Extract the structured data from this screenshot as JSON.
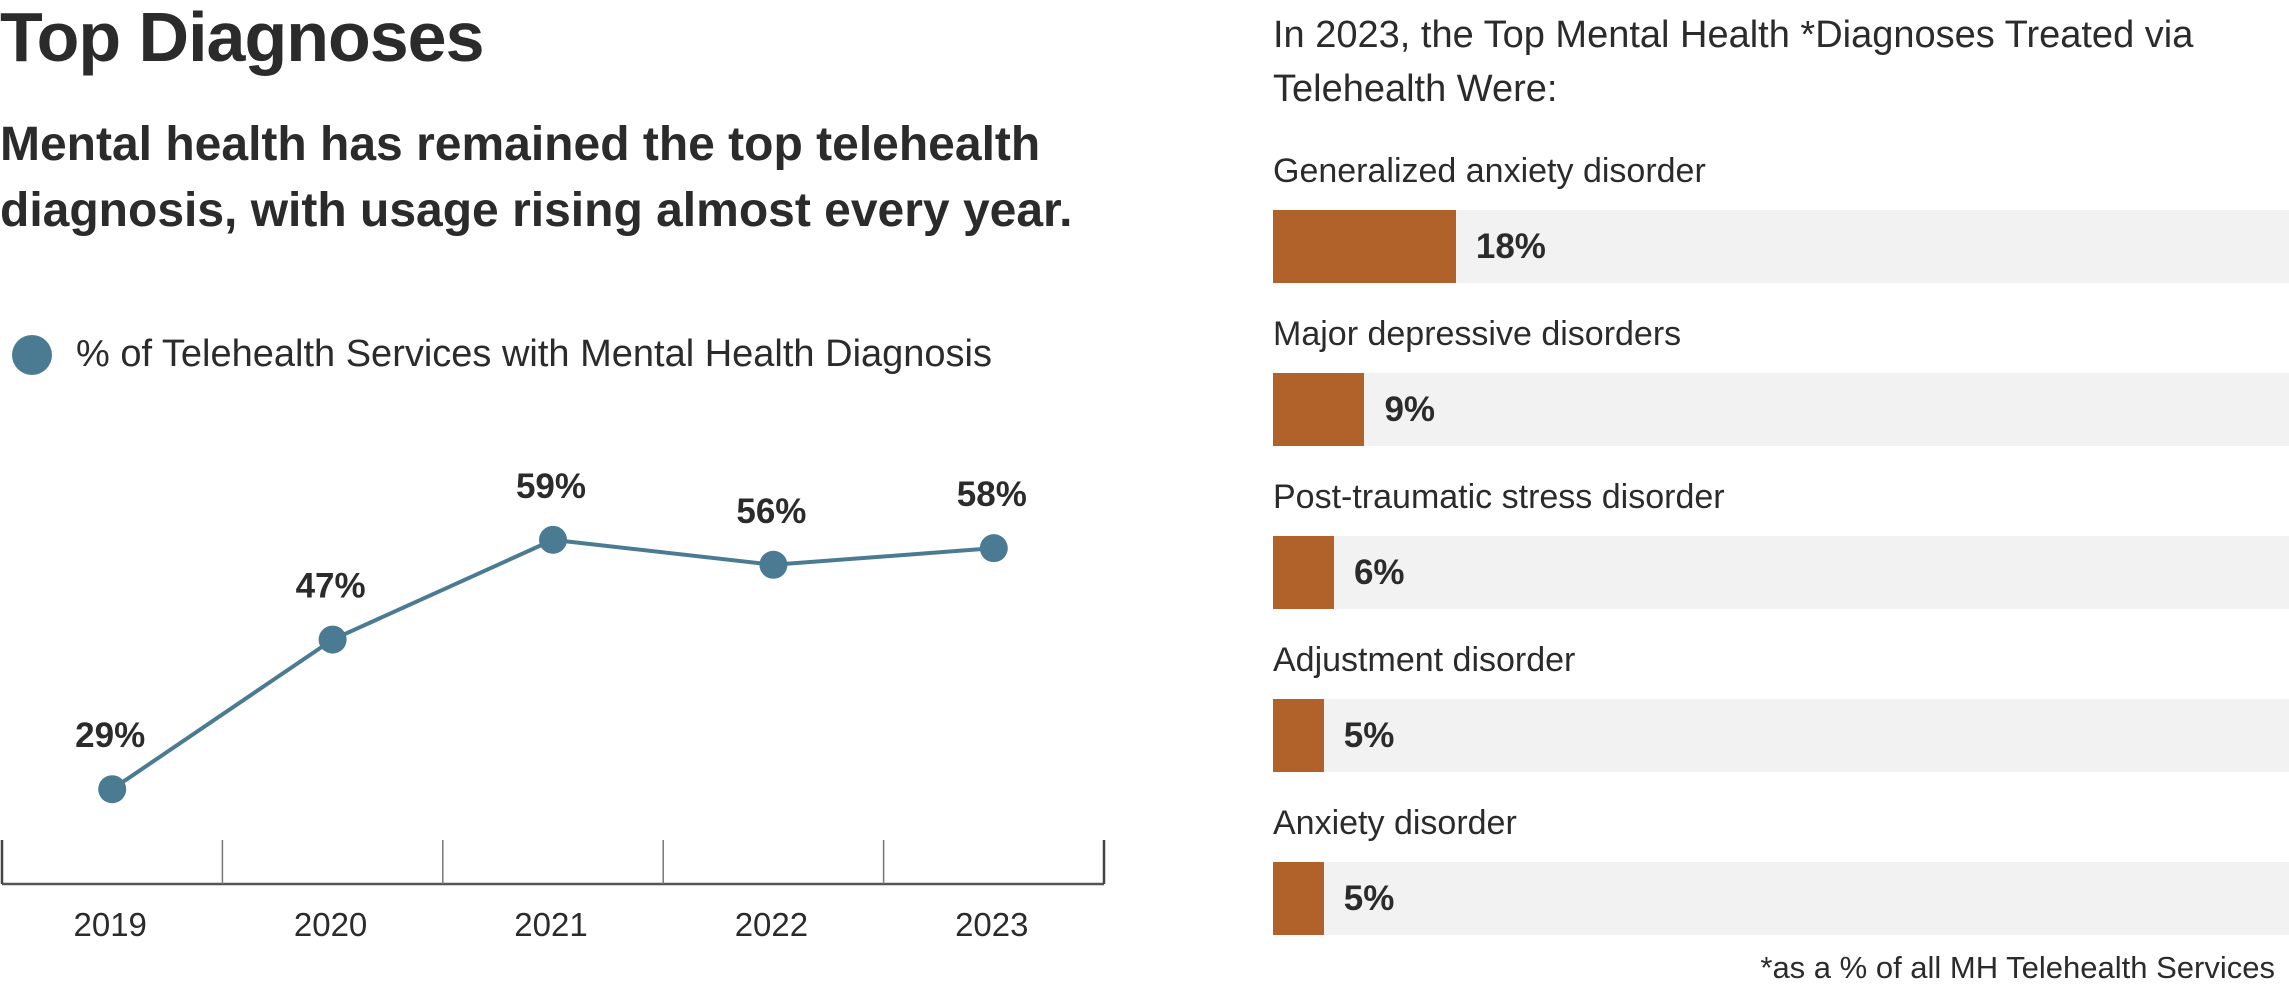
{
  "header": {
    "title": "Top Diagnoses",
    "subtitle": "Mental health has remained the top telehealth diagnosis, with usage rising almost every year."
  },
  "colors": {
    "line": "#4b7b93",
    "bar": "#b1622a",
    "track": "#f2f2f2",
    "text": "#2b2b2b",
    "axis": "#555555"
  },
  "chart_data": [
    {
      "type": "line",
      "title": "",
      "xlabel": "",
      "ylabel": "",
      "legend": {
        "position": "top-left",
        "entries": [
          "% of Telehealth Services with Mental Health Diagnosis"
        ]
      },
      "categories": [
        "2019",
        "2020",
        "2021",
        "2022",
        "2023"
      ],
      "series": [
        {
          "name": "% of Telehealth Services with Mental Health Diagnosis",
          "values": [
            29,
            47,
            59,
            56,
            58
          ],
          "labels": [
            "29%",
            "47%",
            "59%",
            "56%",
            "58%"
          ]
        }
      ],
      "ylim": [
        20,
        65
      ],
      "grid": false
    },
    {
      "type": "bar",
      "orientation": "horizontal",
      "title": "In 2023, the Top Mental Health *Diagnoses Treated via Telehealth Were:",
      "categories": [
        "Generalized anxiety disorder",
        "Major depressive disorders",
        "Post-traumatic stress disorder",
        "Adjustment disorder",
        "Anxiety disorder"
      ],
      "values": [
        18,
        9,
        6,
        5,
        5
      ],
      "labels": [
        "18%",
        "9%",
        "6%",
        "5%",
        "5%"
      ],
      "xlim": [
        0,
        100
      ],
      "footnote": "*as a % of all MH Telehealth Services"
    }
  ]
}
